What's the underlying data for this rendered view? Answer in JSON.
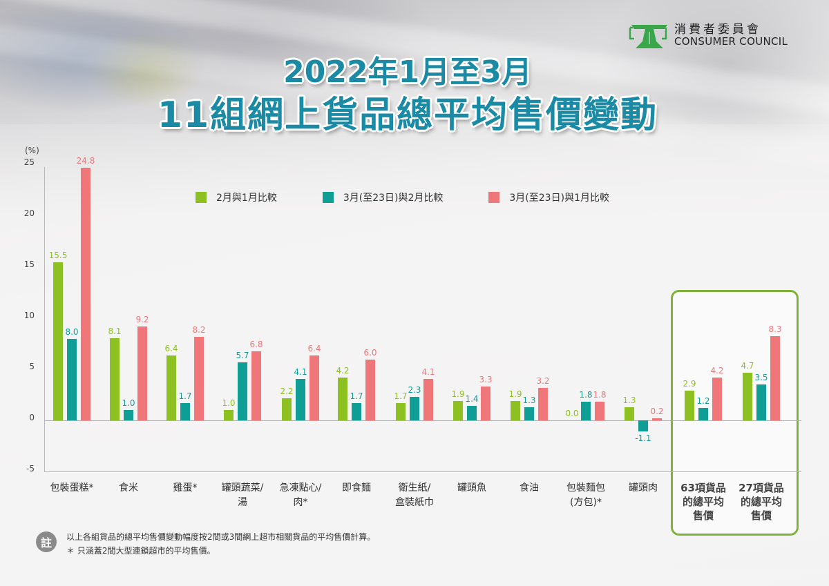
{
  "logo": {
    "name_zh": "消費者委員會",
    "name_en": "CONSUMER COUNCIL",
    "icon": "scale-balance-icon",
    "color": "#3aa64a"
  },
  "title": {
    "line1": "2022年1月至3月",
    "line2": "11組網上貨品總平均售價變動"
  },
  "note": {
    "badge": "註",
    "lines": [
      "以上各組貨品的總平均售價變動幅度按2間或3間網上超市相關貨品的平均售價計算。",
      "＊ 只涵蓋2間大型連鎖超市的平均售價。"
    ]
  },
  "chart_data": {
    "type": "bar",
    "title": "2022年1月至3月 11組網上貨品總平均售價變動",
    "xlabel": "",
    "ylabel": "(%)",
    "ylim": [
      -5,
      25
    ],
    "yticks": [
      "25",
      "20",
      "15",
      "10",
      "5",
      "0",
      "-5"
    ],
    "grid": false,
    "legend_position": "top",
    "categories": [
      "包裝蛋糕*",
      "食米",
      "雞蛋*",
      "罐頭蔬菜/湯",
      "急凍點心/肉*",
      "即食麵",
      "衛生紙/盒裝紙巾",
      "罐頭魚",
      "食油",
      "包裝麵包(方包)*",
      "罐頭肉",
      "63項貨品的總平均售價",
      "27項貨品的總平均售價"
    ],
    "category_lines": [
      [
        "包裝蛋糕*"
      ],
      [
        "食米"
      ],
      [
        "雞蛋*"
      ],
      [
        "罐頭蔬菜/",
        "湯"
      ],
      [
        "急凍點心/",
        "肉*"
      ],
      [
        "即食麵"
      ],
      [
        "衛生紙/",
        "盒裝紙巾"
      ],
      [
        "罐頭魚"
      ],
      [
        "食油"
      ],
      [
        "包裝麵包",
        "(方包)*"
      ],
      [
        "罐頭肉"
      ],
      [
        "63項貨品",
        "的總平均",
        "售價"
      ],
      [
        "27項貨品",
        "的總平均",
        "售價"
      ]
    ],
    "highlighted_categories": [
      11,
      12
    ],
    "series": [
      {
        "name": "2月與1月比較",
        "color": "#8dc021",
        "values": [
          15.5,
          8.1,
          6.4,
          1.0,
          2.2,
          4.2,
          1.7,
          1.9,
          1.9,
          0.0,
          1.3,
          2.9,
          4.7
        ]
      },
      {
        "name": "3月(至23日)與2月比較",
        "color": "#0e9e96",
        "values": [
          8.0,
          1.0,
          1.7,
          5.7,
          4.1,
          1.7,
          2.3,
          1.4,
          1.3,
          1.8,
          -1.1,
          1.2,
          3.5
        ]
      },
      {
        "name": "3月(至23日)與1月比較",
        "color": "#ef7679",
        "values": [
          24.8,
          9.2,
          8.2,
          6.8,
          6.4,
          6.0,
          4.1,
          3.3,
          3.2,
          1.8,
          0.2,
          4.2,
          8.3
        ]
      }
    ]
  }
}
